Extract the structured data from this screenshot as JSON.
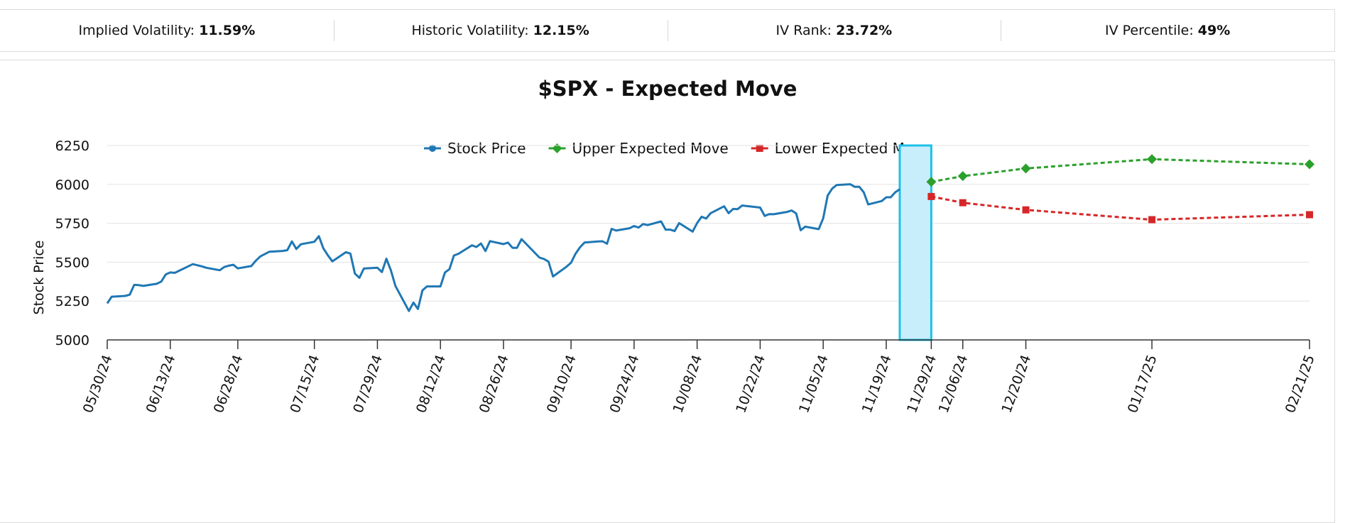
{
  "stats": [
    {
      "label": "Implied Volatility:",
      "value": "11.59%"
    },
    {
      "label": "Historic Volatility:",
      "value": "12.15%"
    },
    {
      "label": "IV Rank:",
      "value": "23.72%"
    },
    {
      "label": "IV Percentile:",
      "value": "49%"
    }
  ],
  "colors": {
    "stock": "#1f77b4",
    "upper": "#2ca02c",
    "lower": "#d62728",
    "highlight_fill": "#c9eefb",
    "highlight_stroke": "#1ec1ec"
  },
  "chart_data": {
    "type": "line",
    "title": "$SPX - Expected Move",
    "ylabel": "Stock Price",
    "xlabel": "",
    "ylim": [
      5000,
      6250
    ],
    "yticks": [
      5000,
      5250,
      5500,
      5750,
      6000,
      6250
    ],
    "grid": true,
    "legend": "top-center",
    "xticks": [
      "05/30/24",
      "06/13/24",
      "06/28/24",
      "07/15/24",
      "07/29/24",
      "08/12/24",
      "08/26/24",
      "09/10/24",
      "09/24/24",
      "10/08/24",
      "10/22/24",
      "11/05/24",
      "11/19/24",
      "11/29/24",
      "12/06/24",
      "12/20/24",
      "01/17/25",
      "02/21/25"
    ],
    "highlight_range": [
      "11/22/24",
      "11/29/24"
    ],
    "series": [
      {
        "name": "Stock Price",
        "marker": "circle",
        "dash": false,
        "x": [
          "05/30/24",
          "05/31/24",
          "06/03/24",
          "06/04/24",
          "06/05/24",
          "06/06/24",
          "06/07/24",
          "06/10/24",
          "06/11/24",
          "06/12/24",
          "06/13/24",
          "06/14/24",
          "06/17/24",
          "06/18/24",
          "06/20/24",
          "06/21/24",
          "06/24/24",
          "06/25/24",
          "06/26/24",
          "06/27/24",
          "06/28/24",
          "07/01/24",
          "07/02/24",
          "07/03/24",
          "07/05/24",
          "07/08/24",
          "07/09/24",
          "07/10/24",
          "07/11/24",
          "07/12/24",
          "07/15/24",
          "07/16/24",
          "07/17/24",
          "07/18/24",
          "07/19/24",
          "07/22/24",
          "07/23/24",
          "07/24/24",
          "07/25/24",
          "07/26/24",
          "07/29/24",
          "07/30/24",
          "07/31/24",
          "08/01/24",
          "08/02/24",
          "08/05/24",
          "08/06/24",
          "08/07/24",
          "08/08/24",
          "08/09/24",
          "08/12/24",
          "08/13/24",
          "08/14/24",
          "08/15/24",
          "08/16/24",
          "08/19/24",
          "08/20/24",
          "08/21/24",
          "08/22/24",
          "08/23/24",
          "08/26/24",
          "08/27/24",
          "08/28/24",
          "08/29/24",
          "08/30/24",
          "09/03/24",
          "09/04/24",
          "09/05/24",
          "09/06/24",
          "09/09/24",
          "09/10/24",
          "09/11/24",
          "09/12/24",
          "09/13/24",
          "09/16/24",
          "09/17/24",
          "09/18/24",
          "09/19/24",
          "09/20/24",
          "09/23/24",
          "09/24/24",
          "09/25/24",
          "09/26/24",
          "09/27/24",
          "09/30/24",
          "10/01/24",
          "10/02/24",
          "10/03/24",
          "10/04/24",
          "10/07/24",
          "10/08/24",
          "10/09/24",
          "10/10/24",
          "10/11/24",
          "10/14/24",
          "10/15/24",
          "10/16/24",
          "10/17/24",
          "10/18/24",
          "10/21/24",
          "10/22/24",
          "10/23/24",
          "10/24/24",
          "10/25/24",
          "10/28/24",
          "10/29/24",
          "10/30/24",
          "10/31/24",
          "11/01/24",
          "11/04/24",
          "11/05/24",
          "11/06/24",
          "11/07/24",
          "11/08/24",
          "11/11/24",
          "11/12/24",
          "11/13/24",
          "11/14/24",
          "11/15/24",
          "11/18/24",
          "11/19/24",
          "11/20/24",
          "11/21/24",
          "11/22/24"
        ],
        "y": [
          5235,
          5278,
          5283,
          5291,
          5354,
          5352,
          5347,
          5361,
          5375,
          5421,
          5434,
          5431,
          5473,
          5487,
          5473,
          5464,
          5448,
          5469,
          5477,
          5483,
          5460,
          5475,
          5509,
          5537,
          5567,
          5572,
          5577,
          5633,
          5585,
          5615,
          5631,
          5667,
          5588,
          5544,
          5505,
          5564,
          5555,
          5427,
          5399,
          5459,
          5464,
          5436,
          5522,
          5446,
          5347,
          5186,
          5240,
          5199,
          5319,
          5344,
          5344,
          5434,
          5455,
          5543,
          5554,
          5608,
          5597,
          5620,
          5571,
          5635,
          5616,
          5626,
          5592,
          5592,
          5648,
          5529,
          5520,
          5503,
          5408,
          5471,
          5496,
          5554,
          5596,
          5626,
          5633,
          5634,
          5618,
          5714,
          5703,
          5718,
          5732,
          5722,
          5745,
          5738,
          5762,
          5709,
          5709,
          5700,
          5751,
          5696,
          5751,
          5792,
          5780,
          5815,
          5859,
          5815,
          5842,
          5841,
          5864,
          5854,
          5851,
          5797,
          5809,
          5808,
          5823,
          5832,
          5813,
          5705,
          5728,
          5712,
          5782,
          5929,
          5973,
          5996,
          6001,
          5984,
          5985,
          5949,
          5871,
          5893,
          5917,
          5917,
          5949,
          5969
        ]
      },
      {
        "name": "Upper Expected Move",
        "marker": "diamond",
        "dash": true,
        "x": [
          "11/29/24",
          "12/06/24",
          "12/20/24",
          "01/17/25",
          "02/21/25"
        ],
        "y": [
          6016,
          6053,
          6102,
          6162,
          6129
        ]
      },
      {
        "name": "Lower Expected Move",
        "marker": "square",
        "dash": true,
        "x": [
          "11/29/24",
          "12/06/24",
          "12/20/24",
          "01/17/25",
          "02/21/25"
        ],
        "y": [
          5922,
          5882,
          5836,
          5773,
          5805
        ]
      }
    ]
  }
}
